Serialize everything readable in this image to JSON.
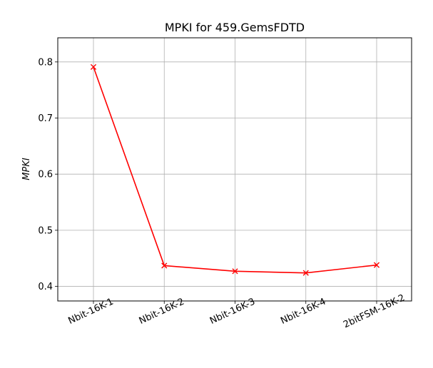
{
  "chart_data": {
    "type": "line",
    "title": "MPKI for 459.GemsFDTD",
    "xlabel": "",
    "ylabel": "MPKI",
    "categories": [
      "Nbit-16K-1",
      "Nbit-16K-2",
      "Nbit-16K-3",
      "Nbit-16K-4",
      "2bitFSM-16K-2"
    ],
    "series": [
      {
        "values": [
          0.791,
          0.437,
          0.427,
          0.424,
          0.438
        ],
        "color": "#ff0000",
        "marker": "x"
      }
    ],
    "ylim": [
      0.374,
      0.843
    ],
    "yticks": [
      0.4,
      0.5,
      0.6,
      0.7,
      0.8
    ],
    "ytick_labels": [
      "0.4",
      "0.5",
      "0.6",
      "0.7",
      "0.8"
    ],
    "grid": true,
    "legend": "none"
  }
}
